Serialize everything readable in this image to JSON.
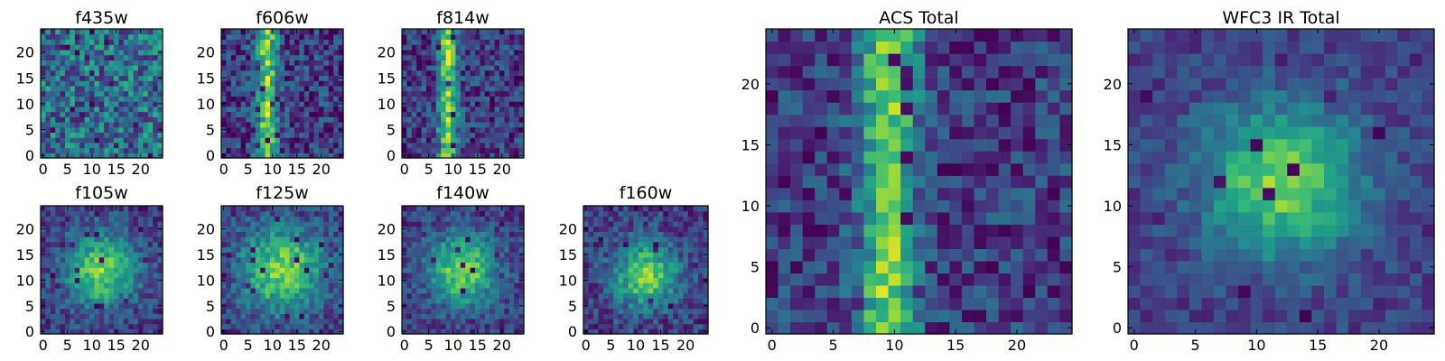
{
  "figure": {
    "colormap": "viridis",
    "colors": {
      "low": "#440154",
      "mid": "#21918c",
      "high": "#fde725",
      "axis": "#000000"
    }
  },
  "chart_data": [
    {
      "type": "heatmap",
      "title": "f435w",
      "x_ticks": [
        0,
        5,
        10,
        15,
        20
      ],
      "y_ticks": [
        0,
        5,
        10,
        15,
        20
      ],
      "xlim": [
        0,
        25
      ],
      "ylim": [
        0,
        25
      ],
      "grid_size": 25,
      "morphology": "noise",
      "source_x": 12,
      "source_y": 12,
      "source_sigma": 6,
      "noise": 0.55,
      "dark_fraction": 0.03,
      "seed": 11
    },
    {
      "type": "heatmap",
      "title": "f606w",
      "x_ticks": [
        0,
        5,
        10,
        15,
        20
      ],
      "y_ticks": [
        0,
        5,
        10,
        15,
        20
      ],
      "xlim": [
        0,
        25
      ],
      "ylim": [
        0,
        25
      ],
      "grid_size": 25,
      "morphology": "vertical",
      "source_x": 9,
      "source_y": 12,
      "source_sigma": 1.5,
      "noise": 0.45,
      "dark_fraction": 0.05,
      "seed": 23
    },
    {
      "type": "heatmap",
      "title": "f814w",
      "x_ticks": [
        0,
        5,
        10,
        15,
        20
      ],
      "y_ticks": [
        0,
        5,
        10,
        15,
        20
      ],
      "xlim": [
        0,
        25
      ],
      "ylim": [
        0,
        25
      ],
      "grid_size": 25,
      "morphology": "vertical",
      "source_x": 9,
      "source_y": 12,
      "source_sigma": 1.4,
      "noise": 0.42,
      "dark_fraction": 0.04,
      "seed": 37
    },
    {
      "type": "heatmap",
      "title": "f105w",
      "x_ticks": [
        0,
        5,
        10,
        15,
        20
      ],
      "y_ticks": [
        0,
        5,
        10,
        15,
        20
      ],
      "xlim": [
        0,
        25
      ],
      "ylim": [
        0,
        25
      ],
      "grid_size": 25,
      "morphology": "blob",
      "source_x": 12,
      "source_y": 12,
      "source_sigma": 5,
      "noise": 0.32,
      "dark_fraction": 0.03,
      "seed": 41
    },
    {
      "type": "heatmap",
      "title": "f125w",
      "x_ticks": [
        0,
        5,
        10,
        15,
        20
      ],
      "y_ticks": [
        0,
        5,
        10,
        15,
        20
      ],
      "xlim": [
        0,
        25
      ],
      "ylim": [
        0,
        25
      ],
      "grid_size": 25,
      "morphology": "blob",
      "source_x": 12,
      "source_y": 12,
      "source_sigma": 6,
      "noise": 0.32,
      "dark_fraction": 0.03,
      "seed": 53
    },
    {
      "type": "heatmap",
      "title": "f140w",
      "x_ticks": [
        0,
        5,
        10,
        15,
        20
      ],
      "y_ticks": [
        0,
        5,
        10,
        15,
        20
      ],
      "xlim": [
        0,
        25
      ],
      "ylim": [
        0,
        25
      ],
      "grid_size": 25,
      "morphology": "blob",
      "source_x": 12,
      "source_y": 12,
      "source_sigma": 5,
      "noise": 0.3,
      "dark_fraction": 0.02,
      "seed": 67
    },
    {
      "type": "heatmap",
      "title": "f160w",
      "x_ticks": [
        0,
        5,
        10,
        15,
        20
      ],
      "y_ticks": [
        0,
        5,
        10,
        15,
        20
      ],
      "xlim": [
        0,
        25
      ],
      "ylim": [
        0,
        25
      ],
      "grid_size": 25,
      "morphology": "blob",
      "source_x": 12,
      "source_y": 11,
      "source_sigma": 4.5,
      "noise": 0.32,
      "dark_fraction": 0.03,
      "seed": 79
    },
    {
      "type": "heatmap",
      "title": "ACS Total",
      "x_ticks": [
        0,
        5,
        10,
        15,
        20
      ],
      "y_ticks": [
        0,
        5,
        10,
        15,
        20
      ],
      "xlim": [
        0,
        25
      ],
      "ylim": [
        0,
        25
      ],
      "grid_size": 25,
      "morphology": "vertical",
      "source_x": 9.5,
      "source_y": 12,
      "source_sigma": 1.6,
      "noise": 0.38,
      "dark_fraction": 0.05,
      "seed": 97
    },
    {
      "type": "heatmap",
      "title": "WFC3 IR Total",
      "x_ticks": [
        0,
        5,
        10,
        15,
        20
      ],
      "y_ticks": [
        0,
        5,
        10,
        15,
        20
      ],
      "xlim": [
        0,
        25
      ],
      "ylim": [
        0,
        25
      ],
      "grid_size": 25,
      "morphology": "blob",
      "source_x": 12,
      "source_y": 12,
      "source_sigma": 4.5,
      "noise": 0.22,
      "dark_fraction": 0.03,
      "seed": 113
    }
  ]
}
